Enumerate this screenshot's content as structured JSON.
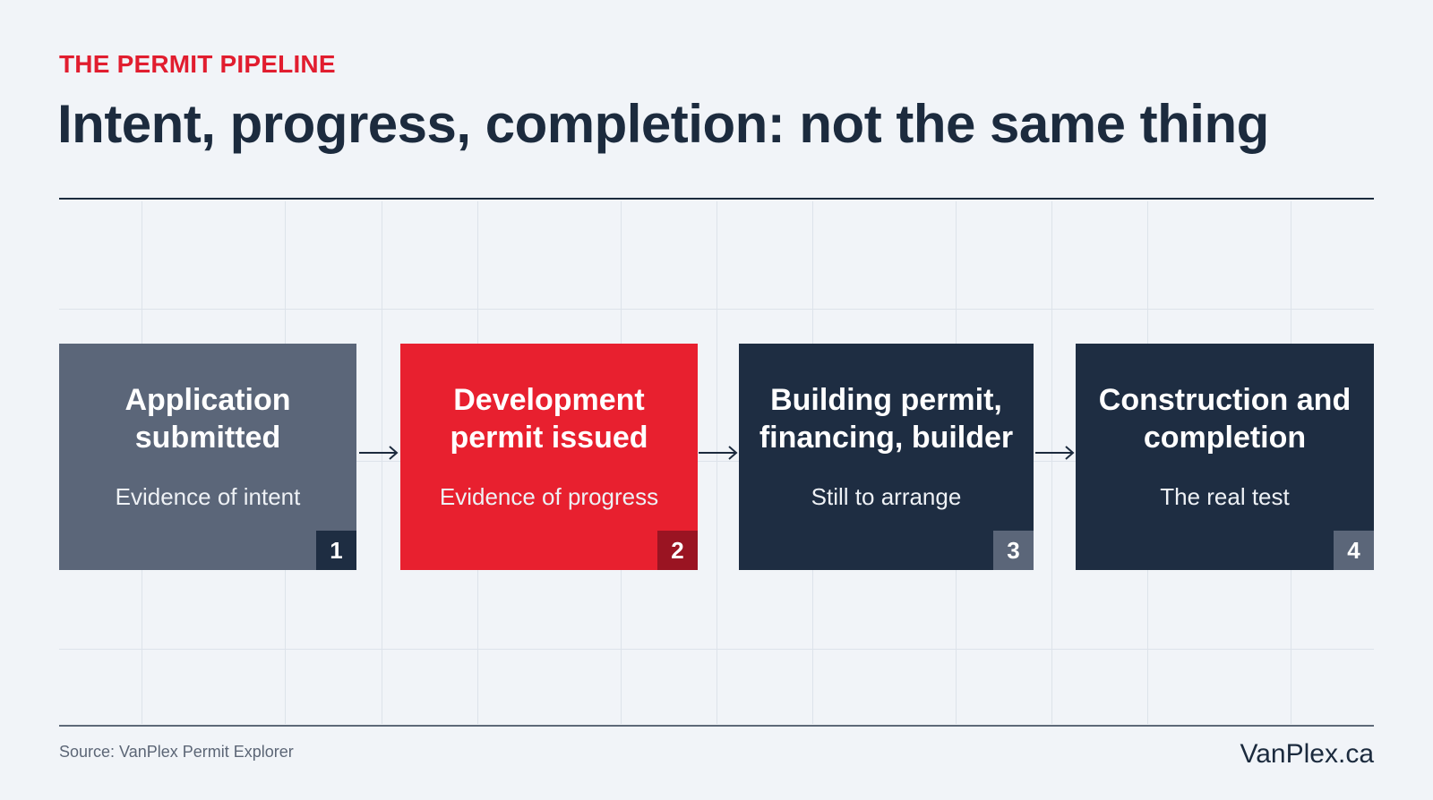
{
  "header": {
    "eyebrow": "THE PERMIT PIPELINE",
    "title": "Intent, progress, completion: not the same thing"
  },
  "steps": [
    {
      "title": "Application submitted",
      "subtitle": "Evidence of intent",
      "number": "1",
      "color": "#5b6679",
      "badge_color": "#1e2d42"
    },
    {
      "title": "Development permit issued",
      "subtitle": "Evidence of progress",
      "number": "2",
      "color": "#e8202f",
      "badge_color": "#9a1422"
    },
    {
      "title": "Building permit, financing, builder",
      "subtitle": "Still to arrange",
      "number": "3",
      "color": "#1e2d42",
      "badge_color": "#5b6679"
    },
    {
      "title": "Construction and completion",
      "subtitle": "The real test",
      "number": "4",
      "color": "#1e2d42",
      "badge_color": "#5b6679"
    }
  ],
  "footer": {
    "source": "Source: VanPlex Permit Explorer",
    "brand": "VanPlex.ca"
  },
  "colors": {
    "accent": "#e11d2f",
    "ink": "#1c2b3e",
    "background": "#f1f4f8"
  }
}
